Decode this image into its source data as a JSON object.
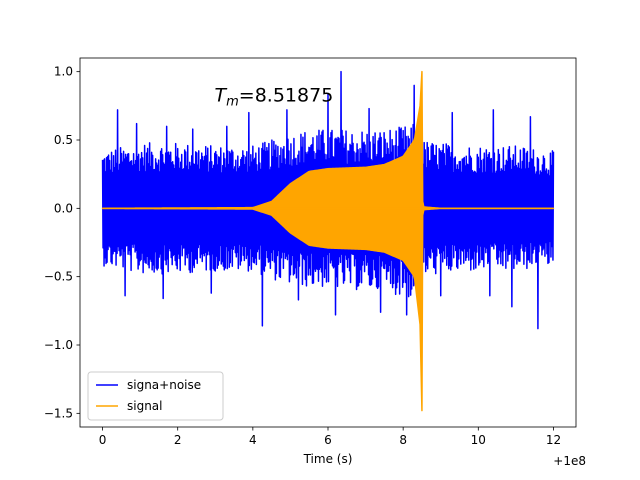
{
  "chart_data": {
    "type": "line",
    "title": "",
    "xlabel": "Time (s)",
    "ylabel": "",
    "offset_label": "+1e8",
    "xlim": [
      -0.6,
      12.6
    ],
    "ylim": [
      -1.6,
      1.1
    ],
    "x_ticks": [
      0,
      2,
      4,
      6,
      8,
      10,
      12
    ],
    "y_ticks": [
      1.0,
      0.5,
      0.0,
      -0.5,
      -1.0,
      -1.5
    ],
    "x_tick_labels": [
      "0",
      "2",
      "4",
      "6",
      "8",
      "10",
      "12"
    ],
    "y_tick_labels": [
      "1.0",
      "0.5",
      "0.0",
      "−0.5",
      "−1.0",
      "−1.5"
    ],
    "annotation": {
      "symbol": "T",
      "subscript": "m",
      "text": "=8.51875"
    },
    "legend": {
      "position": "lower-left",
      "entries": [
        {
          "label": "signa+noise",
          "color": "#0000ff"
        },
        {
          "label": "signal",
          "color": "#ffa500"
        }
      ]
    },
    "series": [
      {
        "name": "signa+noise",
        "color": "#0000ff",
        "kind": "noise-band",
        "x_range": [
          0,
          12
        ],
        "upper_envelope": {
          "x": [
            0,
            1,
            2,
            3,
            4,
            4.5,
            5,
            5.5,
            6,
            6.5,
            7,
            7.5,
            8,
            8.3,
            8.5,
            9,
            10,
            11,
            12
          ],
          "y": [
            0.42,
            0.48,
            0.48,
            0.46,
            0.46,
            0.5,
            0.55,
            0.58,
            0.58,
            0.58,
            0.58,
            0.58,
            0.6,
            0.62,
            0.5,
            0.48,
            0.46,
            0.46,
            0.42
          ]
        },
        "lower_envelope": {
          "x": [
            0,
            1,
            2,
            3,
            4,
            4.5,
            5,
            5.5,
            6,
            6.5,
            7,
            7.5,
            8,
            8.3,
            8.5,
            9,
            10,
            11,
            12
          ],
          "y": [
            -0.42,
            -0.48,
            -0.48,
            -0.46,
            -0.46,
            -0.52,
            -0.56,
            -0.58,
            -0.58,
            -0.6,
            -0.6,
            -0.62,
            -0.64,
            -0.68,
            -0.5,
            -0.48,
            -0.46,
            -0.46,
            -0.42
          ]
        },
        "peaks": [
          {
            "x": 0.4,
            "y": 0.72
          },
          {
            "x": 0.9,
            "y": 0.62
          },
          {
            "x": 1.7,
            "y": 0.6
          },
          {
            "x": 2.4,
            "y": 0.58
          },
          {
            "x": 3.3,
            "y": 0.6
          },
          {
            "x": 3.9,
            "y": 0.7
          },
          {
            "x": 4.9,
            "y": 0.72
          },
          {
            "x": 6.0,
            "y": 0.84
          },
          {
            "x": 6.35,
            "y": 1.0
          },
          {
            "x": 7.1,
            "y": 0.73
          },
          {
            "x": 8.3,
            "y": 0.9
          },
          {
            "x": 9.3,
            "y": 0.7
          },
          {
            "x": 10.4,
            "y": 0.72
          },
          {
            "x": 11.4,
            "y": 0.67
          },
          {
            "x": 0.6,
            "y": -0.64
          },
          {
            "x": 1.6,
            "y": -0.66
          },
          {
            "x": 2.9,
            "y": -0.62
          },
          {
            "x": 4.25,
            "y": -0.86
          },
          {
            "x": 5.2,
            "y": -0.67
          },
          {
            "x": 6.2,
            "y": -0.78
          },
          {
            "x": 7.4,
            "y": -0.76
          },
          {
            "x": 8.1,
            "y": -0.78
          },
          {
            "x": 9.0,
            "y": -0.64
          },
          {
            "x": 10.3,
            "y": -0.64
          },
          {
            "x": 10.9,
            "y": -0.72
          },
          {
            "x": 11.6,
            "y": -0.88
          }
        ]
      },
      {
        "name": "signal",
        "color": "#ffa500",
        "kind": "chirp-envelope",
        "upper_envelope": {
          "x": [
            0,
            4.0,
            4.5,
            5.0,
            5.5,
            6.0,
            7.0,
            7.5,
            8.0,
            8.3,
            8.45,
            8.5,
            8.52,
            8.55,
            9.0,
            12.0
          ],
          "y": [
            0,
            0.005,
            0.05,
            0.18,
            0.27,
            0.29,
            0.3,
            0.32,
            0.38,
            0.5,
            0.75,
            1.0,
            0.05,
            0.01,
            0.0,
            0.0
          ]
        },
        "lower_envelope": {
          "x": [
            0,
            4.0,
            4.5,
            5.0,
            5.5,
            6.0,
            7.0,
            7.5,
            8.0,
            8.3,
            8.45,
            8.5,
            8.52,
            8.55,
            9.0,
            12.0
          ],
          "y": [
            0,
            -0.005,
            -0.05,
            -0.18,
            -0.27,
            -0.29,
            -0.3,
            -0.32,
            -0.38,
            -0.5,
            -0.85,
            -1.48,
            -0.05,
            -0.01,
            0.0,
            0.0
          ]
        }
      }
    ]
  }
}
